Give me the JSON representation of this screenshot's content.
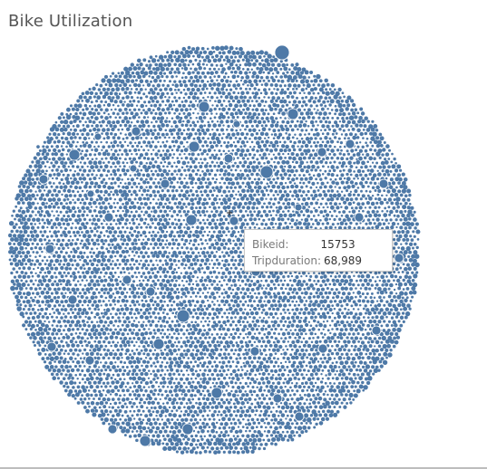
{
  "title": "Bike Utilization",
  "colors": {
    "bubble": "#4e79a7",
    "background": "#ffffff"
  },
  "chart_data": {
    "type": "packed-bubble",
    "title": "Bike Utilization",
    "size_measure": "Tripduration",
    "detail_dimension": "Bikeid",
    "highlighted_point": {
      "bikeid": "15753",
      "tripduration": 68989
    }
  },
  "tooltip": {
    "rows": [
      {
        "label": "Bikeid:",
        "value": "15753"
      },
      {
        "label": "Tripduration:",
        "value": "68,989"
      }
    ]
  }
}
